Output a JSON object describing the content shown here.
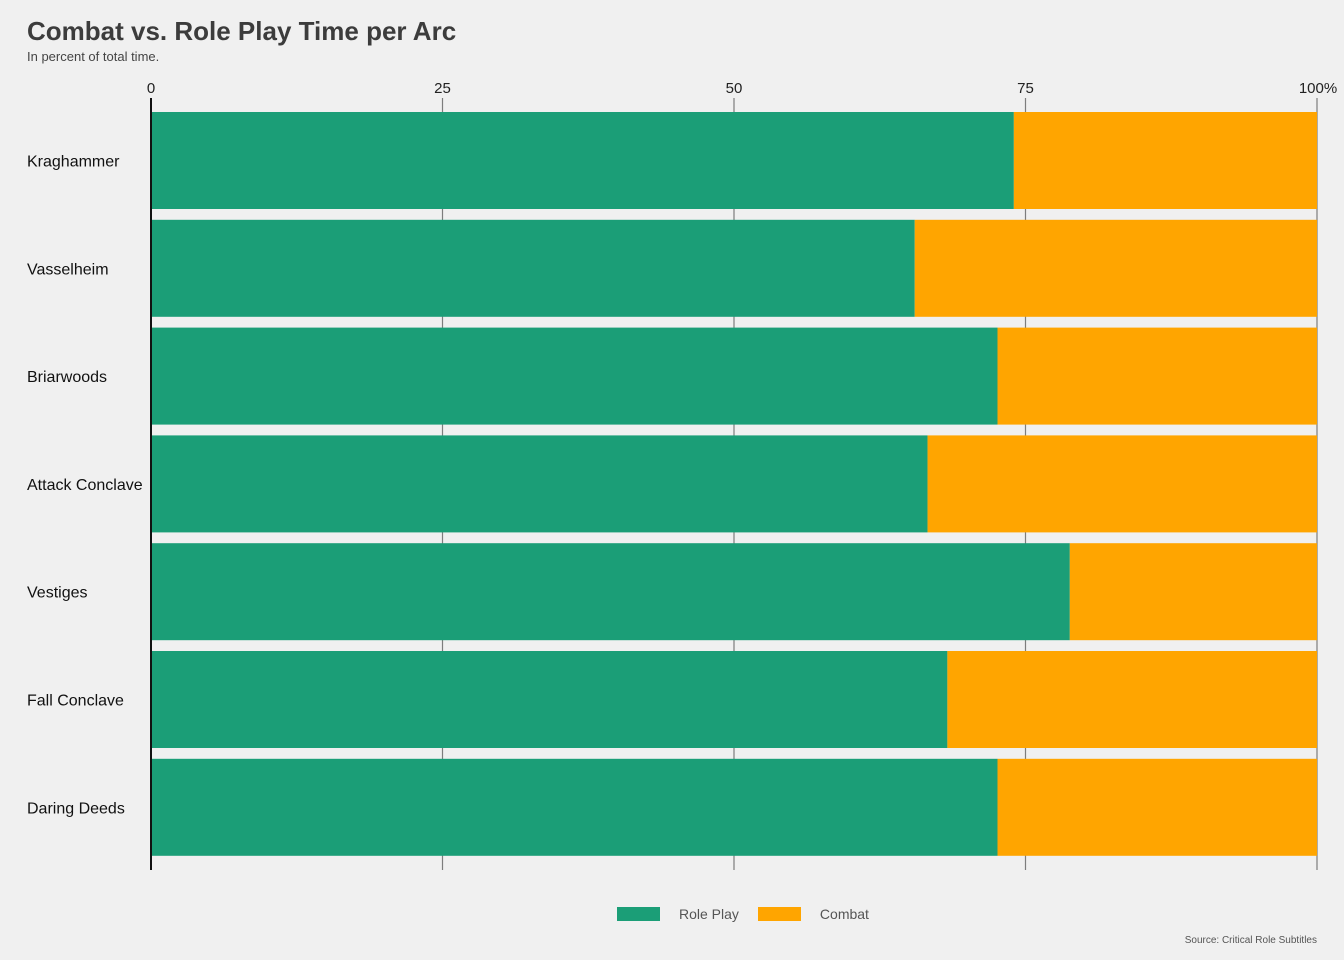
{
  "title": "Combat vs. Role Play Time per Arc",
  "subtitle": "In percent of total time.",
  "source": "Source: Critical Role Subtitles",
  "chart_data": {
    "type": "bar",
    "orientation": "horizontal",
    "stacked": true,
    "title": "Combat vs. Role Play Time per Arc",
    "subtitle": "In percent of total time.",
    "categories": [
      "Kraghammer",
      "Vasselheim",
      "Briarwoods",
      "Attack Conclave",
      "Vestiges",
      "Fall Conclave",
      "Daring Deeds"
    ],
    "series": [
      {
        "name": "Role Play",
        "color": "#1b9e77",
        "values": [
          74,
          65.5,
          72.6,
          66.6,
          78.8,
          68.3,
          72.6
        ]
      },
      {
        "name": "Combat",
        "color": "#ffa500",
        "values": [
          26,
          34.5,
          27.4,
          33.4,
          21.2,
          31.7,
          27.4
        ]
      }
    ],
    "xlim": [
      0,
      100
    ],
    "xticks": [
      0,
      25,
      50,
      75,
      100
    ],
    "xtick_labels": [
      "0",
      "25",
      "50",
      "75",
      "100%"
    ],
    "xaxis_position": "top",
    "grid": true,
    "legend_position": "bottom"
  }
}
